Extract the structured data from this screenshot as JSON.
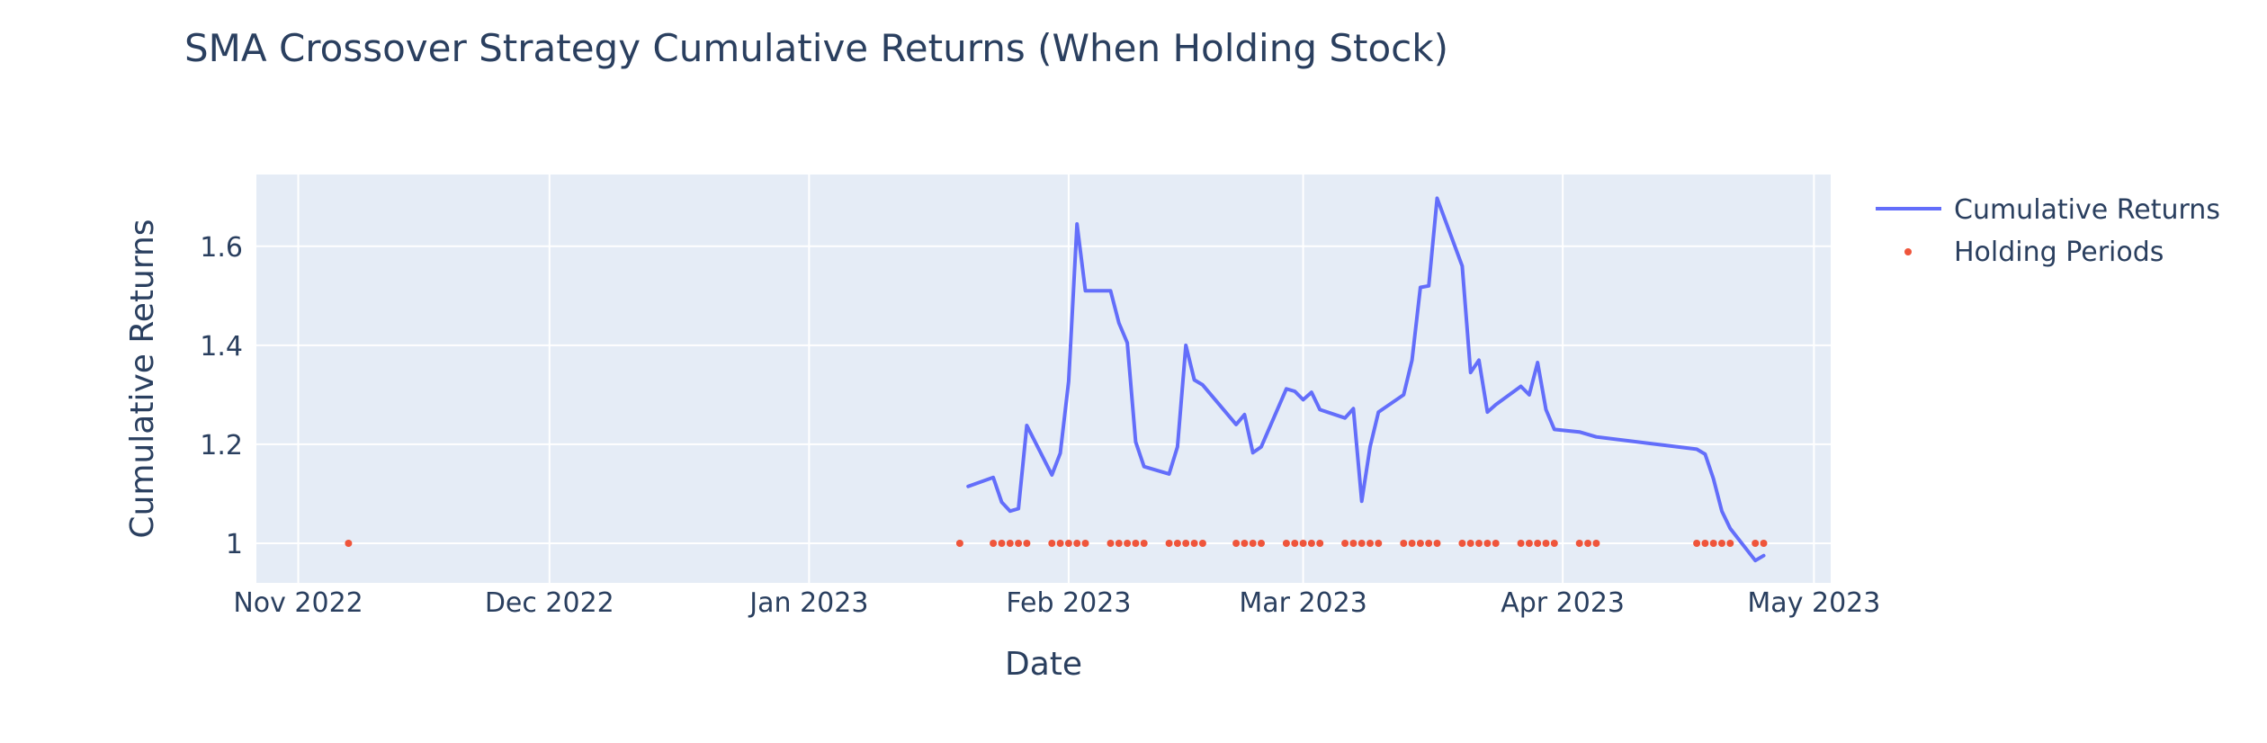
{
  "chart_data": {
    "type": "line",
    "title": "SMA Crossover Strategy Cumulative Returns (When Holding Stock)",
    "xlabel": "Date",
    "ylabel": "Cumulative Returns",
    "xlim": [
      "2022-10-27",
      "2023-05-03"
    ],
    "ylim": [
      0.92,
      1.745
    ],
    "x_ticks": [
      {
        "date": "2022-11-01",
        "label": "Nov 2022"
      },
      {
        "date": "2022-12-01",
        "label": "Dec 2022"
      },
      {
        "date": "2023-01-01",
        "label": "Jan 2023"
      },
      {
        "date": "2023-02-01",
        "label": "Feb 2023"
      },
      {
        "date": "2023-03-01",
        "label": "Mar 2023"
      },
      {
        "date": "2023-04-01",
        "label": "Apr 2023"
      },
      {
        "date": "2023-05-01",
        "label": "May 2023"
      }
    ],
    "y_ticks": [
      {
        "value": 1.0,
        "label": "1"
      },
      {
        "value": 1.2,
        "label": "1.2"
      },
      {
        "value": 1.4,
        "label": "1.4"
      },
      {
        "value": 1.6,
        "label": "1.6"
      }
    ],
    "grid": true,
    "legend_position": "top-right",
    "series": [
      {
        "name": "Cumulative Returns",
        "mode": "line",
        "color": "#636efa",
        "x": [
          "2023-01-20",
          "2023-01-23",
          "2023-01-24",
          "2023-01-25",
          "2023-01-26",
          "2023-01-27",
          "2023-01-30",
          "2023-01-31",
          "2023-02-01",
          "2023-02-02",
          "2023-02-03",
          "2023-02-06",
          "2023-02-07",
          "2023-02-08",
          "2023-02-09",
          "2023-02-10",
          "2023-02-13",
          "2023-02-14",
          "2023-02-15",
          "2023-02-16",
          "2023-02-17",
          "2023-02-21",
          "2023-02-22",
          "2023-02-23",
          "2023-02-24",
          "2023-02-27",
          "2023-02-28",
          "2023-03-01",
          "2023-03-02",
          "2023-03-03",
          "2023-03-06",
          "2023-03-07",
          "2023-03-08",
          "2023-03-09",
          "2023-03-10",
          "2023-03-13",
          "2023-03-14",
          "2023-03-15",
          "2023-03-16",
          "2023-03-17",
          "2023-03-20",
          "2023-03-21",
          "2023-03-22",
          "2023-03-23",
          "2023-03-24",
          "2023-03-27",
          "2023-03-28",
          "2023-03-29",
          "2023-03-30",
          "2023-03-31",
          "2023-04-03",
          "2023-04-04",
          "2023-04-05",
          "2023-04-17",
          "2023-04-18",
          "2023-04-19",
          "2023-04-20",
          "2023-04-21",
          "2023-04-24",
          "2023-04-25"
        ],
        "y": [
          1.115,
          1.133,
          1.083,
          1.065,
          1.07,
          1.238,
          1.138,
          1.182,
          1.327,
          1.645,
          1.51,
          1.51,
          1.445,
          1.405,
          1.205,
          1.155,
          1.14,
          1.195,
          1.4,
          1.33,
          1.32,
          1.24,
          1.26,
          1.183,
          1.195,
          1.312,
          1.307,
          1.29,
          1.305,
          1.27,
          1.253,
          1.272,
          1.085,
          1.195,
          1.265,
          1.3,
          1.37,
          1.517,
          1.52,
          1.697,
          1.56,
          1.345,
          1.37,
          1.265,
          1.28,
          1.317,
          1.3,
          1.365,
          1.27,
          1.23,
          1.225,
          1.22,
          1.215,
          1.19,
          1.18,
          1.13,
          1.065,
          1.03,
          0.965,
          0.975
        ]
      },
      {
        "name": "Holding Periods",
        "mode": "markers",
        "color": "#ef553b",
        "x": [
          "2022-11-07",
          "2023-01-19",
          "2023-01-23",
          "2023-01-24",
          "2023-01-25",
          "2023-01-26",
          "2023-01-27",
          "2023-01-30",
          "2023-01-31",
          "2023-02-01",
          "2023-02-02",
          "2023-02-03",
          "2023-02-06",
          "2023-02-07",
          "2023-02-08",
          "2023-02-09",
          "2023-02-10",
          "2023-02-13",
          "2023-02-14",
          "2023-02-15",
          "2023-02-16",
          "2023-02-17",
          "2023-02-21",
          "2023-02-22",
          "2023-02-23",
          "2023-02-24",
          "2023-02-27",
          "2023-02-28",
          "2023-03-01",
          "2023-03-02",
          "2023-03-03",
          "2023-03-06",
          "2023-03-07",
          "2023-03-08",
          "2023-03-09",
          "2023-03-10",
          "2023-03-13",
          "2023-03-14",
          "2023-03-15",
          "2023-03-16",
          "2023-03-17",
          "2023-03-20",
          "2023-03-21",
          "2023-03-22",
          "2023-03-23",
          "2023-03-24",
          "2023-03-27",
          "2023-03-28",
          "2023-03-29",
          "2023-03-30",
          "2023-03-31",
          "2023-04-03",
          "2023-04-04",
          "2023-04-05",
          "2023-04-17",
          "2023-04-18",
          "2023-04-19",
          "2023-04-20",
          "2023-04-21",
          "2023-04-24",
          "2023-04-25"
        ],
        "y": [
          1,
          1,
          1,
          1,
          1,
          1,
          1,
          1,
          1,
          1,
          1,
          1,
          1,
          1,
          1,
          1,
          1,
          1,
          1,
          1,
          1,
          1,
          1,
          1,
          1,
          1,
          1,
          1,
          1,
          1,
          1,
          1,
          1,
          1,
          1,
          1,
          1,
          1,
          1,
          1,
          1,
          1,
          1,
          1,
          1,
          1,
          1,
          1,
          1,
          1,
          1,
          1,
          1,
          1,
          1,
          1,
          1,
          1,
          1,
          1,
          1
        ]
      }
    ]
  }
}
